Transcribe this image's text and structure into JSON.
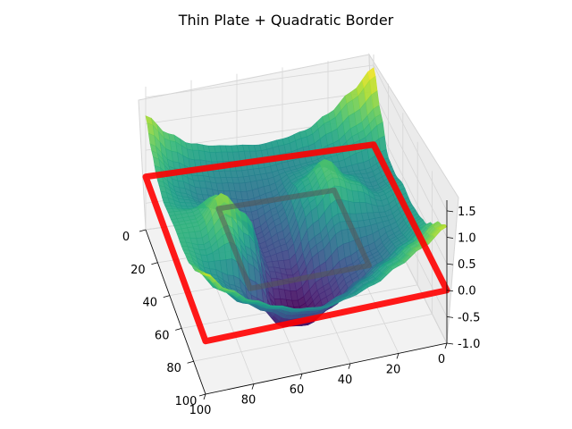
{
  "chart_data": {
    "type": "surface3d",
    "title": "Thin Plate + Quadratic Border",
    "xlabel": "",
    "ylabel": "",
    "zlabel": "",
    "x_ticks": [
      "0",
      "20",
      "40",
      "60",
      "80",
      "100"
    ],
    "y_ticks": [
      "0",
      "20",
      "40",
      "60",
      "80",
      "100"
    ],
    "z_ticks": [
      "-1.0",
      "-0.5",
      "0.0",
      "0.5",
      "1.0",
      "1.5"
    ],
    "xlim": [
      0,
      100
    ],
    "ylim": [
      0,
      100
    ],
    "zlim": [
      -1.0,
      1.7
    ],
    "grid": true,
    "colormap": "viridis",
    "surface_grid": [
      [
        1.45,
        0.85,
        0.3,
        0.25,
        0.35,
        0.3,
        0.35,
        0.45,
        0.7,
        1.0,
        1.2
      ],
      [
        1.05,
        0.55,
        0.15,
        0.1,
        0.2,
        0.1,
        0.05,
        0.15,
        0.4,
        0.7,
        0.9
      ],
      [
        0.7,
        0.3,
        0.15,
        0.35,
        0.5,
        0.1,
        -0.2,
        -0.15,
        0.15,
        0.45,
        0.65
      ],
      [
        0.45,
        0.15,
        0.35,
        0.75,
        0.7,
        0.15,
        -0.4,
        -0.45,
        -0.1,
        0.2,
        0.4
      ],
      [
        0.35,
        0.1,
        0.2,
        0.4,
        0.3,
        -0.2,
        -0.7,
        -0.8,
        -0.4,
        0.0,
        0.25
      ],
      [
        0.3,
        0.05,
        -0.1,
        -0.2,
        -0.4,
        -0.7,
        -1.0,
        -1.05,
        -0.6,
        -0.15,
        0.15
      ],
      [
        0.35,
        0.05,
        -0.2,
        -0.45,
        -0.5,
        -0.55,
        -0.9,
        -1.0,
        -0.55,
        -0.1,
        0.2
      ],
      [
        0.4,
        0.1,
        -0.1,
        -0.05,
        0.3,
        0.6,
        0.1,
        -0.55,
        -0.3,
        0.05,
        0.35
      ],
      [
        0.5,
        0.2,
        0.05,
        0.2,
        0.75,
        1.05,
        0.65,
        -0.05,
        -0.05,
        0.25,
        0.55
      ],
      [
        0.75,
        0.4,
        0.25,
        0.3,
        0.5,
        0.55,
        0.4,
        0.25,
        0.3,
        0.55,
        0.85
      ],
      [
        1.15,
        0.8,
        0.55,
        0.45,
        0.5,
        0.55,
        0.55,
        0.6,
        0.75,
        1.0,
        1.25
      ]
    ],
    "border": {
      "color": "#ff0000",
      "xlim": [
        0,
        100
      ],
      "ylim": [
        0,
        100
      ],
      "z": 0.0
    },
    "inner_square": {
      "color": "#555555",
      "xlim": [
        25,
        75
      ],
      "ylim": [
        25,
        75
      ],
      "z": 0.0
    }
  }
}
